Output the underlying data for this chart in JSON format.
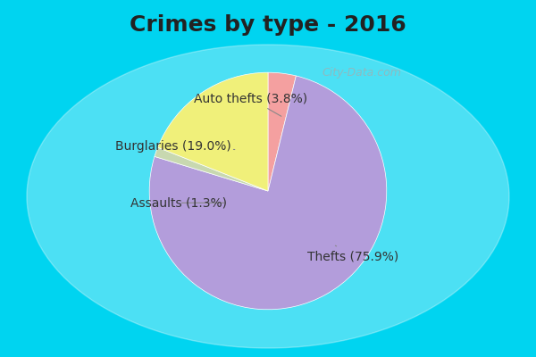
{
  "title": "Crimes by type - 2016",
  "labels": [
    "Thefts",
    "Burglaries",
    "Auto thefts",
    "Assaults"
  ],
  "values": [
    75.9,
    19.0,
    3.8,
    1.3
  ],
  "colors": [
    "#b39ddb",
    "#f0f07a",
    "#f4a0a0",
    "#c8d8b0"
  ],
  "label_texts": [
    "Thefts (75.9%)",
    "Burglaries (19.0%)",
    "Auto thefts (3.8%)",
    "Assaults (1.3%)"
  ],
  "background_top": "#00d4f0",
  "background_main": "#d8edd8",
  "title_fontsize": 18,
  "label_fontsize": 10
}
